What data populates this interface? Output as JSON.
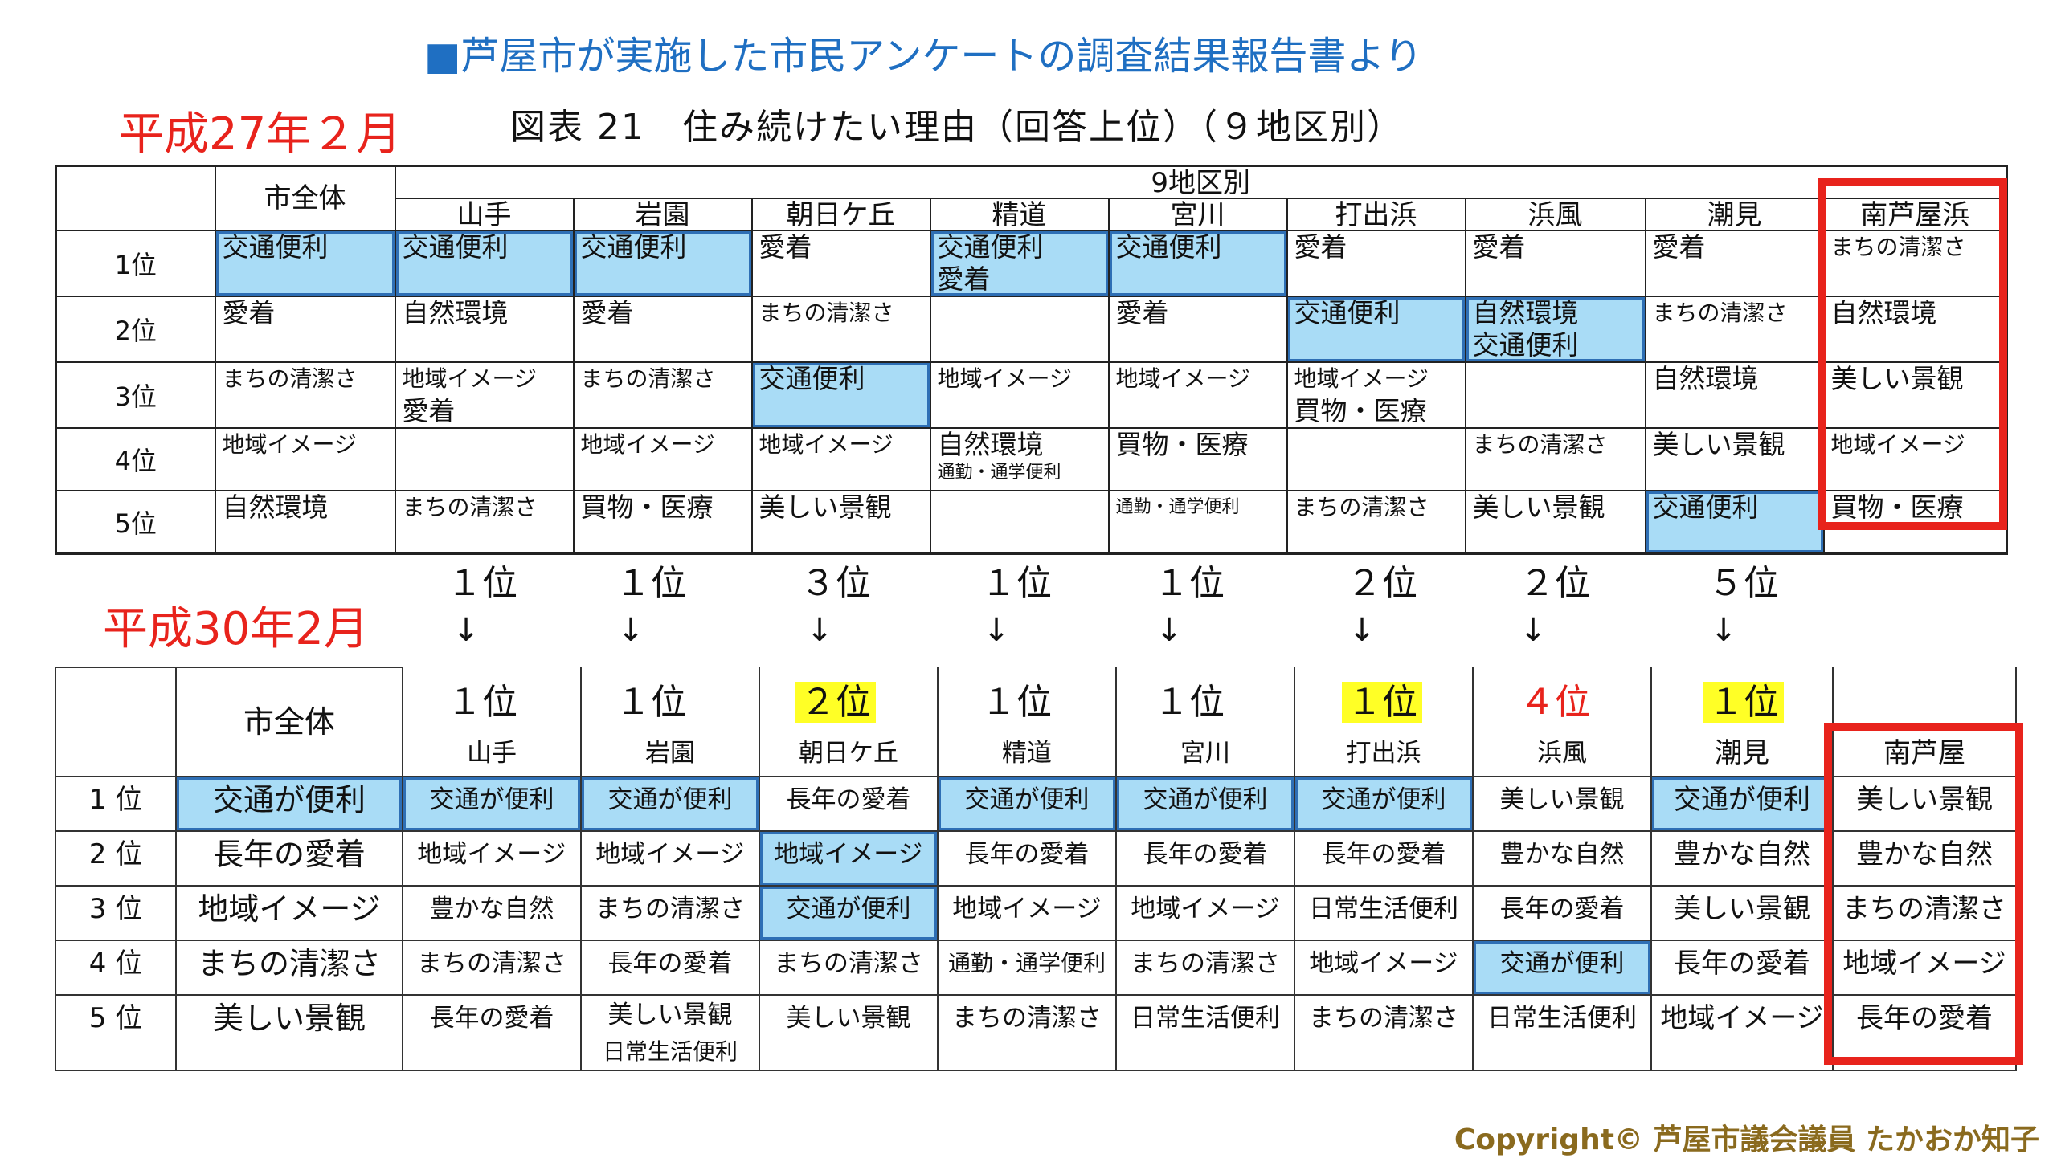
{
  "header": {
    "title": "■芦屋市が実施した市民アンケートの調査結果報告書より"
  },
  "era_2015": "平成27年２月",
  "era_2018": "平成30年2月",
  "chart_title": "図表 21　住み続けたい理由（回答上位）（９地区別）",
  "table_2015": {
    "group_header": "9地区別",
    "columns": [
      "市全体",
      "山手",
      "岩園",
      "朝日ケ丘",
      "精道",
      "宮川",
      "打出浜",
      "浜風",
      "潮見",
      "南芦屋浜"
    ],
    "ranks": [
      "1位",
      "2位",
      "3位",
      "4位",
      "5位"
    ],
    "rows": [
      [
        [
          "交通便利"
        ],
        [
          "交通便利"
        ],
        [
          "交通便利"
        ],
        [
          "愛着"
        ],
        [
          "交通便利",
          "愛着"
        ],
        [
          "交通便利"
        ],
        [
          "愛着"
        ],
        [
          "愛着"
        ],
        [
          "愛着"
        ],
        [
          "まちの清潔さ"
        ]
      ],
      [
        [
          "愛着"
        ],
        [
          "自然環境"
        ],
        [
          "愛着"
        ],
        [
          "まちの清潔さ"
        ],
        [
          ""
        ],
        [
          "愛着"
        ],
        [
          "交通便利"
        ],
        [
          "自然環境",
          "交通便利"
        ],
        [
          "まちの清潔さ"
        ],
        [
          "自然環境"
        ]
      ],
      [
        [
          "まちの清潔さ"
        ],
        [
          "地域イメージ",
          "愛着"
        ],
        [
          "まちの清潔さ"
        ],
        [
          "交通便利"
        ],
        [
          "地域イメージ"
        ],
        [
          "地域イメージ"
        ],
        [
          "地域イメージ",
          "買物・医療"
        ],
        [
          ""
        ],
        [
          "自然環境"
        ],
        [
          "美しい景観"
        ]
      ],
      [
        [
          "地域イメージ"
        ],
        [
          ""
        ],
        [
          "地域イメージ"
        ],
        [
          "地域イメージ"
        ],
        [
          "自然環境",
          "通勤・通学便利"
        ],
        [
          "買物・医療"
        ],
        [
          ""
        ],
        [
          "まちの清潔さ"
        ],
        [
          "美しい景観"
        ],
        [
          "地域イメージ"
        ]
      ],
      [
        [
          "自然環境"
        ],
        [
          "まちの清潔さ"
        ],
        [
          "買物・医療"
        ],
        [
          "美しい景観"
        ],
        [
          ""
        ],
        [
          "通勤・通学便利"
        ],
        [
          "まちの清潔さ"
        ],
        [
          "美しい景観"
        ],
        [
          "交通便利"
        ],
        [
          "買物・医療"
        ]
      ]
    ]
  },
  "rank_change": {
    "before": [
      "１位",
      "１位",
      "３位",
      "１位",
      "１位",
      "２位",
      "２位",
      "５位"
    ],
    "arrow": "↓",
    "after": [
      "１位",
      "１位",
      "２位",
      "１位",
      "１位",
      "１位",
      "４位",
      "１位"
    ]
  },
  "table_2018": {
    "city_header": "市全体",
    "ranks": [
      "1 位",
      "2 位",
      "3 位",
      "4 位",
      "5 位"
    ],
    "city_values": [
      "交通が便利",
      "長年の愛着",
      "地域イメージ",
      "まちの清潔さ",
      "美しい景観"
    ],
    "columns": [
      "山手",
      "岩園",
      "朝日ケ丘",
      "精道",
      "宮川",
      "打出浜",
      "浜風",
      "潮見",
      "南芦屋"
    ],
    "rows": [
      [
        "交通が便利",
        "交通が便利",
        "長年の愛着",
        "交通が便利",
        "交通が便利",
        "交通が便利",
        "美しい景観",
        "交通が便利",
        "美しい景観"
      ],
      [
        "地域イメージ",
        "地域イメージ",
        "地域イメージ",
        "長年の愛着",
        "長年の愛着",
        "長年の愛着",
        "豊かな自然",
        "豊かな自然",
        "豊かな自然"
      ],
      [
        "豊かな自然",
        "まちの清潔さ",
        "交通が便利",
        "地域イメージ",
        "地域イメージ",
        "日常生活便利",
        "長年の愛着",
        "美しい景観",
        "まちの清潔さ"
      ],
      [
        "まちの清潔さ",
        "長年の愛着",
        "まちの清潔さ",
        "通勤・通学便利",
        "まちの清潔さ",
        "地域イメージ",
        "交通が便利",
        "長年の愛着",
        "地域イメージ"
      ],
      [
        "長年の愛着",
        "美しい景観",
        "美しい景観",
        "まちの清潔さ",
        "日常生活便利",
        "まちの清潔さ",
        "日常生活便利",
        "地域イメージ",
        "長年の愛着"
      ],
      [
        "",
        "日常生活便利",
        "",
        "",
        "",
        "",
        "",
        "",
        ""
      ]
    ]
  },
  "copyright": "Copyright© 芦屋市議会議員 たかおか知子",
  "colors": {
    "title_blue": "#1f6fc2",
    "era_red": "#e8231c",
    "highlight_blue": "#a9dcf6",
    "highlight_yellow": "#ffff26",
    "copyright_brown": "#8a6a1e"
  }
}
